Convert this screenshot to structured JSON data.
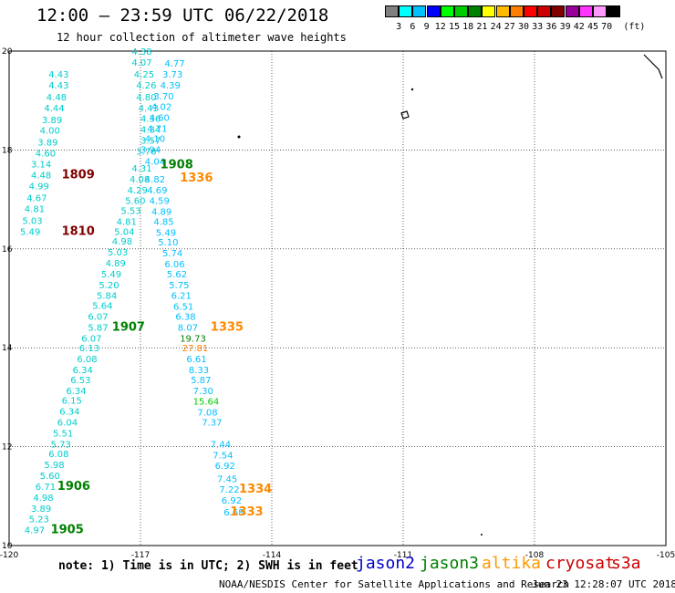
{
  "header": {
    "title": "12:00 – 23:59 UTC 06/22/2018",
    "subtitle": "12 hour collection of altimeter wave heights"
  },
  "scale": {
    "unit": "(ft)",
    "colors": [
      "#808080",
      "#00ffff",
      "#00bfff",
      "#0000ff",
      "#00ff00",
      "#00cc00",
      "#008000",
      "#ffff00",
      "#ffbb00",
      "#ff8000",
      "#ff0000",
      "#cc0000",
      "#800000",
      "#990099",
      "#ff33ff",
      "#ff99ff",
      "#000000"
    ],
    "labels": [
      "3",
      "6",
      "9",
      "12",
      "15",
      "18",
      "21",
      "24",
      "27",
      "30",
      "33",
      "36",
      "39",
      "42",
      "45",
      "70"
    ]
  },
  "map": {
    "lon_range": [
      -120,
      -105
    ],
    "lat_range": [
      10,
      20
    ],
    "lon_ticks": [
      "-120",
      "-117",
      "-114",
      "-111",
      "-108",
      "-105"
    ],
    "lat_ticks": [
      "20",
      "18",
      "16",
      "14",
      "12",
      "10"
    ],
    "grid": "dotted",
    "observations": [
      {
        "text": "4.43",
        "lon": -119.1,
        "lat": 19.54,
        "color": "#00cccc"
      },
      {
        "text": "4.43",
        "lon": -119.1,
        "lat": 19.32,
        "color": "#00cccc"
      },
      {
        "text": "4.48",
        "lon": -119.15,
        "lat": 19.08,
        "color": "#00cccc"
      },
      {
        "text": "4.44",
        "lon": -119.2,
        "lat": 18.86,
        "color": "#00cccc"
      },
      {
        "text": "3.89",
        "lon": -119.25,
        "lat": 18.62,
        "color": "#00cccc"
      },
      {
        "text": "4.00",
        "lon": -119.3,
        "lat": 18.4,
        "color": "#00cccc"
      },
      {
        "text": "3.89",
        "lon": -119.35,
        "lat": 18.16,
        "color": "#00cccc"
      },
      {
        "text": "4.60",
        "lon": -119.4,
        "lat": 17.94,
        "color": "#00cccc"
      },
      {
        "text": "3.14",
        "lon": -119.5,
        "lat": 17.72,
        "color": "#00cccc"
      },
      {
        "text": "4.48",
        "lon": -119.5,
        "lat": 17.5,
        "color": "#00cccc"
      },
      {
        "text": "4.99",
        "lon": -119.55,
        "lat": 17.28,
        "color": "#00cccc"
      },
      {
        "text": "4.67",
        "lon": -119.6,
        "lat": 17.04,
        "color": "#00cccc"
      },
      {
        "text": "4.81",
        "lon": -119.65,
        "lat": 16.82,
        "color": "#00cccc"
      },
      {
        "text": "5.03",
        "lon": -119.7,
        "lat": 16.58,
        "color": "#00cccc"
      },
      {
        "text": "5.49",
        "lon": -119.75,
        "lat": 16.36,
        "color": "#00cccc"
      },
      {
        "text": "1809",
        "lon": -118.8,
        "lat": 17.5,
        "color": "#800000",
        "bold": true,
        "size": 13
      },
      {
        "text": "1810",
        "lon": -118.8,
        "lat": 16.36,
        "color": "#800000",
        "bold": true,
        "size": 13
      },
      {
        "text": "4.38",
        "lon": -117.2,
        "lat": 20.0,
        "color": "#00cccc"
      },
      {
        "text": "4.07",
        "lon": -117.2,
        "lat": 19.78,
        "color": "#00cccc"
      },
      {
        "text": "4.25",
        "lon": -117.15,
        "lat": 19.54,
        "color": "#00cccc"
      },
      {
        "text": "4.26",
        "lon": -117.1,
        "lat": 19.32,
        "color": "#00cccc"
      },
      {
        "text": "4.80",
        "lon": -117.1,
        "lat": 19.08,
        "color": "#00cccc"
      },
      {
        "text": "4.43",
        "lon": -117.05,
        "lat": 18.86,
        "color": "#00cccc"
      },
      {
        "text": "4.36",
        "lon": -117.0,
        "lat": 18.64,
        "color": "#00cccc"
      },
      {
        "text": "4.34",
        "lon": -117.0,
        "lat": 18.42,
        "color": "#00cccc"
      },
      {
        "text": "3.57",
        "lon": -117.0,
        "lat": 18.2,
        "color": "#00cccc"
      },
      {
        "text": "3.76",
        "lon": -117.1,
        "lat": 17.98,
        "color": "#00cccc"
      },
      {
        "text": "4.31",
        "lon": -117.2,
        "lat": 17.64,
        "color": "#00cccc"
      },
      {
        "text": "4.08",
        "lon": -117.25,
        "lat": 17.42,
        "color": "#00cccc"
      },
      {
        "text": "4.29",
        "lon": -117.3,
        "lat": 17.2,
        "color": "#00cccc"
      },
      {
        "text": "5.60",
        "lon": -117.35,
        "lat": 16.98,
        "color": "#00cccc"
      },
      {
        "text": "5.53",
        "lon": -117.45,
        "lat": 16.78,
        "color": "#00cccc"
      },
      {
        "text": "4.81",
        "lon": -117.55,
        "lat": 16.56,
        "color": "#00cccc"
      },
      {
        "text": "5.04",
        "lon": -117.6,
        "lat": 16.36,
        "color": "#00cccc"
      },
      {
        "text": "4.98",
        "lon": -117.65,
        "lat": 16.16,
        "color": "#00cccc"
      },
      {
        "text": "5.03",
        "lon": -117.75,
        "lat": 15.94,
        "color": "#00cccc"
      },
      {
        "text": "4.89",
        "lon": -117.8,
        "lat": 15.72,
        "color": "#00cccc"
      },
      {
        "text": "5.49",
        "lon": -117.9,
        "lat": 15.5,
        "color": "#00cccc"
      },
      {
        "text": "5.20",
        "lon": -117.95,
        "lat": 15.28,
        "color": "#00cccc"
      },
      {
        "text": "5.84",
        "lon": -118.0,
        "lat": 15.06,
        "color": "#00cccc"
      },
      {
        "text": "5.64",
        "lon": -118.1,
        "lat": 14.86,
        "color": "#00cccc"
      },
      {
        "text": "6.07",
        "lon": -118.2,
        "lat": 14.64,
        "color": "#00cccc"
      },
      {
        "text": "5.87",
        "lon": -118.2,
        "lat": 14.42,
        "color": "#00cccc"
      },
      {
        "text": "6.07",
        "lon": -118.35,
        "lat": 14.2,
        "color": "#00cccc"
      },
      {
        "text": "6.13",
        "lon": -118.4,
        "lat": 14.0,
        "color": "#00cccc"
      },
      {
        "text": "6.08",
        "lon": -118.45,
        "lat": 13.78,
        "color": "#00cccc"
      },
      {
        "text": "6.34",
        "lon": -118.55,
        "lat": 13.56,
        "color": "#00cccc"
      },
      {
        "text": "6.53",
        "lon": -118.6,
        "lat": 13.36,
        "color": "#00cccc"
      },
      {
        "text": "6.34",
        "lon": -118.7,
        "lat": 13.14,
        "color": "#00cccc"
      },
      {
        "text": "6.15",
        "lon": -118.8,
        "lat": 12.94,
        "color": "#00cccc"
      },
      {
        "text": "6.34",
        "lon": -118.85,
        "lat": 12.72,
        "color": "#00cccc"
      },
      {
        "text": "6.04",
        "lon": -118.9,
        "lat": 12.5,
        "color": "#00cccc"
      },
      {
        "text": "5.51",
        "lon": -119.0,
        "lat": 12.28,
        "color": "#00cccc"
      },
      {
        "text": "5.73",
        "lon": -119.05,
        "lat": 12.06,
        "color": "#00cccc"
      },
      {
        "text": "6.08",
        "lon": -119.1,
        "lat": 11.86,
        "color": "#00cccc"
      },
      {
        "text": "5.98",
        "lon": -119.2,
        "lat": 11.64,
        "color": "#00cccc"
      },
      {
        "text": "5.60",
        "lon": -119.3,
        "lat": 11.42,
        "color": "#00cccc"
      },
      {
        "text": "6.71",
        "lon": -119.4,
        "lat": 11.2,
        "color": "#00cccc"
      },
      {
        "text": "4.98",
        "lon": -119.45,
        "lat": 10.98,
        "color": "#00cccc"
      },
      {
        "text": "3.89",
        "lon": -119.5,
        "lat": 10.76,
        "color": "#00cccc"
      },
      {
        "text": "5.23",
        "lon": -119.55,
        "lat": 10.54,
        "color": "#00cccc"
      },
      {
        "text": "4.97",
        "lon": -119.65,
        "lat": 10.32,
        "color": "#00cccc"
      },
      {
        "text": "1907",
        "lon": -117.65,
        "lat": 14.42,
        "color": "#008000",
        "bold": true,
        "size": 13
      },
      {
        "text": "1906",
        "lon": -118.9,
        "lat": 11.2,
        "color": "#008000",
        "bold": true,
        "size": 13
      },
      {
        "text": "1905",
        "lon": -119.05,
        "lat": 10.32,
        "color": "#008000",
        "bold": true,
        "size": 13
      },
      {
        "text": "4.77",
        "lon": -116.45,
        "lat": 19.76,
        "color": "#00bfff"
      },
      {
        "text": "3.73",
        "lon": -116.5,
        "lat": 19.54,
        "color": "#00bfff"
      },
      {
        "text": "4.39",
        "lon": -116.55,
        "lat": 19.32,
        "color": "#00bfff"
      },
      {
        "text": "3.70",
        "lon": -116.7,
        "lat": 19.1,
        "color": "#00bfff"
      },
      {
        "text": "4.02",
        "lon": -116.75,
        "lat": 18.88,
        "color": "#00bfff"
      },
      {
        "text": "4.60",
        "lon": -116.8,
        "lat": 18.66,
        "color": "#00bfff"
      },
      {
        "text": "4.71",
        "lon": -116.85,
        "lat": 18.44,
        "color": "#00bfff"
      },
      {
        "text": "4.10",
        "lon": -116.9,
        "lat": 18.24,
        "color": "#00bfff"
      },
      {
        "text": "3.94",
        "lon": -117.0,
        "lat": 18.02,
        "color": "#00bfff"
      },
      {
        "text": "4.04",
        "lon": -116.9,
        "lat": 17.78,
        "color": "#00bfff"
      },
      {
        "text": "4.82",
        "lon": -116.9,
        "lat": 17.42,
        "color": "#00bfff"
      },
      {
        "text": "4.69",
        "lon": -116.85,
        "lat": 17.2,
        "color": "#00bfff"
      },
      {
        "text": "4.59",
        "lon": -116.8,
        "lat": 16.98,
        "color": "#00bfff"
      },
      {
        "text": "4.89",
        "lon": -116.75,
        "lat": 16.76,
        "color": "#00bfff"
      },
      {
        "text": "4.85",
        "lon": -116.7,
        "lat": 16.56,
        "color": "#00bfff"
      },
      {
        "text": "5.49",
        "lon": -116.65,
        "lat": 16.34,
        "color": "#00bfff"
      },
      {
        "text": "5.10",
        "lon": -116.6,
        "lat": 16.14,
        "color": "#00bfff"
      },
      {
        "text": "5.74",
        "lon": -116.5,
        "lat": 15.92,
        "color": "#00bfff"
      },
      {
        "text": "6.06",
        "lon": -116.45,
        "lat": 15.7,
        "color": "#00bfff"
      },
      {
        "text": "5.62",
        "lon": -116.4,
        "lat": 15.5,
        "color": "#00bfff"
      },
      {
        "text": "5.75",
        "lon": -116.35,
        "lat": 15.28,
        "color": "#00bfff"
      },
      {
        "text": "6.21",
        "lon": -116.3,
        "lat": 15.06,
        "color": "#00bfff"
      },
      {
        "text": "6.51",
        "lon": -116.25,
        "lat": 14.84,
        "color": "#00bfff"
      },
      {
        "text": "6.38",
        "lon": -116.2,
        "lat": 14.64,
        "color": "#00bfff"
      },
      {
        "text": "8.07",
        "lon": -116.15,
        "lat": 14.42,
        "color": "#00bfff"
      },
      {
        "text": "19.73",
        "lon": -116.1,
        "lat": 14.2,
        "color": "#008000"
      },
      {
        "text": "27.81",
        "lon": -116.05,
        "lat": 14.0,
        "color": "#ff8000"
      },
      {
        "text": "6.61",
        "lon": -115.95,
        "lat": 13.78,
        "color": "#00bfff"
      },
      {
        "text": "8.33",
        "lon": -115.9,
        "lat": 13.56,
        "color": "#00bfff"
      },
      {
        "text": "5.87",
        "lon": -115.85,
        "lat": 13.36,
        "color": "#00bfff"
      },
      {
        "text": "7.30",
        "lon": -115.8,
        "lat": 13.14,
        "color": "#00bfff"
      },
      {
        "text": "15.64",
        "lon": -115.8,
        "lat": 12.92,
        "color": "#00cc00"
      },
      {
        "text": "7.08",
        "lon": -115.7,
        "lat": 12.7,
        "color": "#00bfff"
      },
      {
        "text": "7.37",
        "lon": -115.6,
        "lat": 12.5,
        "color": "#00bfff"
      },
      {
        "text": "7.44",
        "lon": -115.4,
        "lat": 12.06,
        "color": "#00bfff"
      },
      {
        "text": "7.54",
        "lon": -115.35,
        "lat": 11.84,
        "color": "#00bfff"
      },
      {
        "text": "6.92",
        "lon": -115.3,
        "lat": 11.62,
        "color": "#00bfff"
      },
      {
        "text": "7.45",
        "lon": -115.25,
        "lat": 11.36,
        "color": "#00bfff"
      },
      {
        "text": "7.22",
        "lon": -115.2,
        "lat": 11.14,
        "color": "#00bfff"
      },
      {
        "text": "6.92",
        "lon": -115.15,
        "lat": 10.92,
        "color": "#00bfff"
      },
      {
        "text": "6.68",
        "lon": -115.1,
        "lat": 10.68,
        "color": "#00bfff"
      },
      {
        "text": "1908",
        "lon": -116.55,
        "lat": 17.7,
        "color": "#008000",
        "bold": true,
        "size": 13
      },
      {
        "text": "1336",
        "lon": -116.1,
        "lat": 17.44,
        "color": "#ff8800",
        "bold": true,
        "size": 13
      },
      {
        "text": "1335",
        "lon": -115.4,
        "lat": 14.42,
        "color": "#ff8800",
        "bold": true,
        "size": 13
      },
      {
        "text": "1334",
        "lon": -114.75,
        "lat": 11.14,
        "color": "#ff8800",
        "bold": true,
        "size": 13
      },
      {
        "text": "1333",
        "lon": -114.95,
        "lat": 10.68,
        "color": "#ff8800",
        "bold": true,
        "size": 13
      }
    ]
  },
  "footer": {
    "note": "note:  1) Time is in UTC;  2) SWH is in feet",
    "satellites": [
      {
        "name": "jason2",
        "color": "#0000cc"
      },
      {
        "name": "jason3",
        "color": "#008000"
      },
      {
        "name": "altika",
        "color": "#ff9900"
      },
      {
        "name": "cryosat",
        "color": "#cc0000"
      },
      {
        "name": "s3a",
        "color": "#cc0000"
      }
    ],
    "credit": "NOAA/NESDIS Center for Satellite Applications and Research",
    "timestamp": "Jun 23 12:28:07 UTC 2018"
  }
}
